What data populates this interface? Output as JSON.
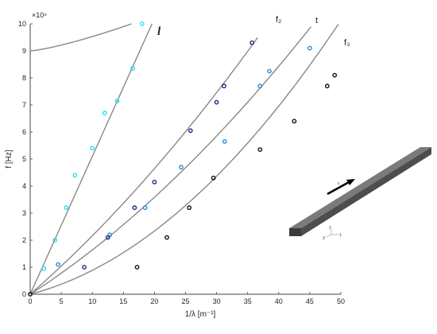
{
  "chart_data": {
    "type": "scatter",
    "xlabel": "1/λ [m⁻¹]",
    "ylabel": "f [Hz]",
    "y_exponent_label": "×10⁴",
    "xlim": [
      0,
      50
    ],
    "ylim": [
      0,
      10
    ],
    "x_ticks": [
      0,
      5,
      10,
      15,
      20,
      25,
      30,
      35,
      40,
      45,
      50
    ],
    "y_ticks": [
      0,
      1,
      2,
      3,
      4,
      5,
      6,
      7,
      8,
      9,
      10
    ],
    "grid": false,
    "legend": "none",
    "curve_labels": {
      "l": "l",
      "f2": "f₂",
      "t": "t",
      "f3": "f₃"
    },
    "inset": {
      "force_label": "c",
      "axis_labels": [
        "1",
        "2",
        "3"
      ]
    },
    "colors": {
      "l": "#29e0f0",
      "f2": "#1a2a8a",
      "t": "#2a8fd8",
      "f3": "#111111",
      "curve": "#888888"
    },
    "series": [
      {
        "key": "l",
        "color": "#29e0f0",
        "x": [
          2.2,
          4,
          5.8,
          7.2,
          10,
          12,
          14,
          16.5,
          18
        ],
        "y": [
          0.95,
          2,
          3.2,
          4.4,
          5.4,
          6.7,
          7.15,
          8.35,
          10
        ]
      },
      {
        "key": "t",
        "color": "#2a8fd8",
        "x": [
          4.5,
          12.8,
          18.5,
          24.3,
          31.3,
          37,
          38.5,
          45
        ],
        "y": [
          1.1,
          2.2,
          3.2,
          4.7,
          5.65,
          7.7,
          8.25,
          9.1
        ]
      },
      {
        "key": "f2",
        "color": "#1a2a8a",
        "x": [
          8.7,
          12.5,
          16.8,
          20,
          25.8,
          30,
          31.2,
          35.7
        ],
        "y": [
          1.0,
          2.1,
          3.2,
          4.15,
          6.05,
          7.1,
          7.7,
          9.3
        ]
      },
      {
        "key": "f3",
        "color": "#111111",
        "x": [
          0,
          17.2,
          22,
          25.6,
          29.5,
          37,
          42.5,
          47.8,
          49
        ],
        "y": [
          0,
          1.0,
          2.1,
          3.2,
          4.3,
          5.35,
          6.4,
          7.7,
          8.1
        ]
      }
    ]
  }
}
